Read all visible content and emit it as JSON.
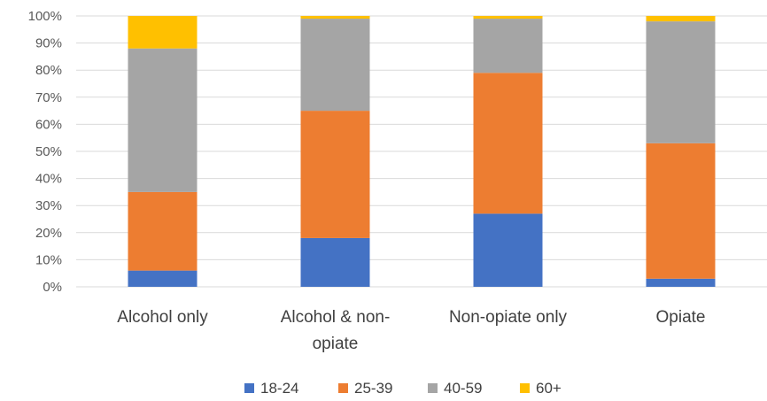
{
  "chart_data": {
    "type": "bar",
    "stacked": true,
    "percent_stacked": true,
    "title": "",
    "xlabel": "",
    "ylabel": "",
    "ylim": [
      0,
      100
    ],
    "y_ticks": [
      "0%",
      "10%",
      "20%",
      "30%",
      "40%",
      "50%",
      "60%",
      "70%",
      "80%",
      "90%",
      "100%"
    ],
    "grid": true,
    "legend": "bottom",
    "categories": [
      {
        "lines": [
          "Alcohol only"
        ]
      },
      {
        "lines": [
          "Alcohol & non-",
          "opiate"
        ]
      },
      {
        "lines": [
          "Non-opiate only"
        ]
      },
      {
        "lines": [
          "Opiate"
        ]
      }
    ],
    "series": [
      {
        "name": "18-24",
        "color": "#4472C4",
        "values": [
          6,
          18,
          27,
          3
        ]
      },
      {
        "name": "25-39",
        "color": "#ED7D31",
        "values": [
          29,
          47,
          52,
          50
        ]
      },
      {
        "name": "40-59",
        "color": "#A5A5A5",
        "values": [
          53,
          34,
          20,
          45
        ]
      },
      {
        "name": "60+",
        "color": "#FFC000",
        "values": [
          12,
          1,
          1,
          2
        ]
      }
    ]
  }
}
